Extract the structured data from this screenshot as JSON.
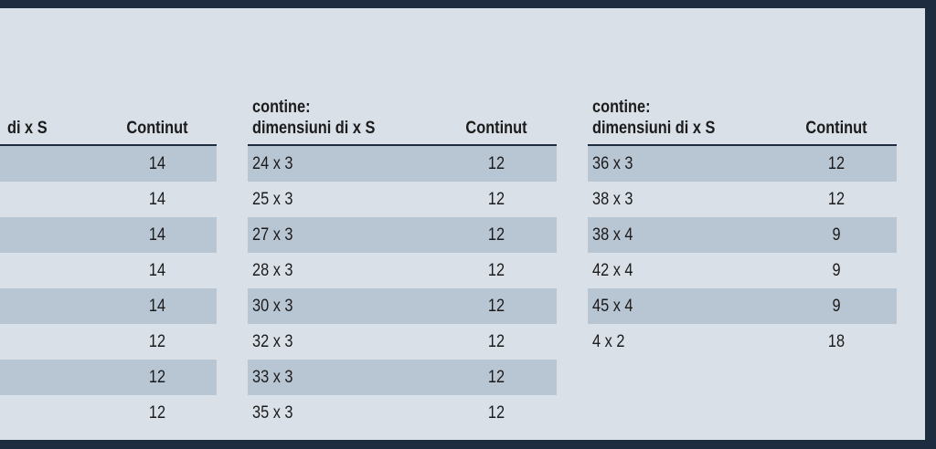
{
  "tables": [
    {
      "header": {
        "col1": "di x S",
        "col2": "Continut"
      },
      "rows": [
        {
          "dim": "",
          "qty": "14"
        },
        {
          "dim": "",
          "qty": "14"
        },
        {
          "dim": "",
          "qty": "14"
        },
        {
          "dim": "",
          "qty": "14"
        },
        {
          "dim": "",
          "qty": "14"
        },
        {
          "dim": "",
          "qty": "12"
        },
        {
          "dim": "",
          "qty": "12"
        },
        {
          "dim": "",
          "qty": "12"
        }
      ]
    },
    {
      "header": {
        "col1_line1": "contine:",
        "col1": "dimensiuni di x S",
        "col2": "Continut"
      },
      "rows": [
        {
          "dim": "24 x 3",
          "qty": "12"
        },
        {
          "dim": "25 x 3",
          "qty": "12"
        },
        {
          "dim": "27 x 3",
          "qty": "12"
        },
        {
          "dim": "28 x 3",
          "qty": "12"
        },
        {
          "dim": "30 x 3",
          "qty": "12"
        },
        {
          "dim": "32 x 3",
          "qty": "12"
        },
        {
          "dim": "33 x 3",
          "qty": "12"
        },
        {
          "dim": "35 x 3",
          "qty": "12"
        }
      ]
    },
    {
      "header": {
        "col1_line1": "contine:",
        "col1": "dimensiuni di x S",
        "col2": "Continut"
      },
      "rows": [
        {
          "dim": "36 x 3",
          "qty": "12"
        },
        {
          "dim": "38 x 3",
          "qty": "12"
        },
        {
          "dim": "38 x 4",
          "qty": "9"
        },
        {
          "dim": "42 x 4",
          "qty": "9"
        },
        {
          "dim": "45 x 4",
          "qty": "9"
        },
        {
          "dim": "4 x 2",
          "qty": "18"
        }
      ]
    }
  ]
}
